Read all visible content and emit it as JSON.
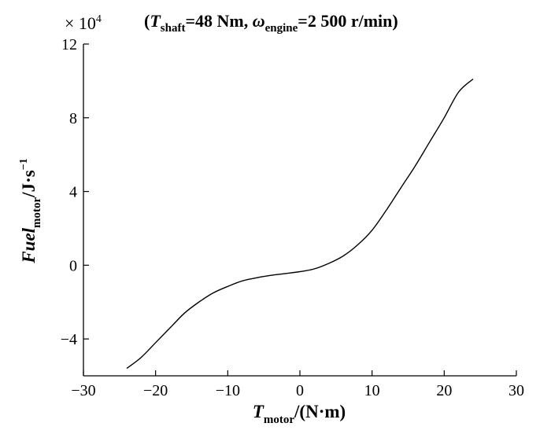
{
  "chart_data": {
    "type": "line",
    "title": {
      "open": "(",
      "t_shaft_main": "T",
      "t_shaft_sub": "shaft",
      "t_shaft_value": "=48 Nm, ",
      "omega_main": "ω",
      "omega_sub": "engine",
      "omega_value": "=2 500 r/min",
      "close": ")"
    },
    "xlabel": {
      "main": "T",
      "sub": "motor",
      "unit": "/(N·m)"
    },
    "ylabel": {
      "main": "Fuel",
      "sub": "motor",
      "unit": "/J·s",
      "sup": "−1"
    },
    "y_multiplier": {
      "text": "× 10",
      "exp": "4"
    },
    "xlim": [
      -30,
      30
    ],
    "ylim": [
      -6,
      12
    ],
    "x_ticks": [
      -30,
      -20,
      -10,
      0,
      10,
      20,
      30
    ],
    "x_tick_labels": [
      "−30",
      "−20",
      "−10",
      "0",
      "10",
      "20",
      "30"
    ],
    "y_ticks": [
      -4,
      0,
      4,
      8,
      12
    ],
    "y_tick_labels": [
      "−4",
      "0",
      "4",
      "8",
      "12"
    ],
    "grid": false,
    "line_color": "#000000",
    "series": [
      {
        "x": [
          -24,
          -22,
          -20,
          -18,
          -16,
          -14,
          -12,
          -10,
          -8,
          -6,
          -4,
          -2,
          0,
          2,
          4,
          6,
          8,
          10,
          12,
          14,
          16,
          18,
          20,
          22,
          24
        ],
        "y": [
          -5.6,
          -5.0,
          -4.2,
          -3.4,
          -2.6,
          -2.0,
          -1.5,
          -1.15,
          -0.85,
          -0.68,
          -0.55,
          -0.45,
          -0.35,
          -0.2,
          0.1,
          0.5,
          1.1,
          1.9,
          3.0,
          4.2,
          5.4,
          6.7,
          8.0,
          9.4,
          10.1
        ]
      }
    ]
  }
}
